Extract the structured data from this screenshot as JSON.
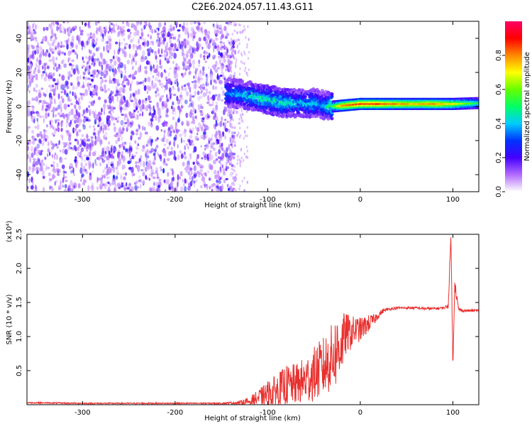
{
  "title": "C2E6.2024.057.11.43.G11",
  "chart_data": [
    {
      "type": "heatmap",
      "xlabel": "Height of straight line (km)",
      "ylabel": "Frequency (Hz)",
      "xlim": [
        -360,
        128
      ],
      "ylim": [
        -50,
        50
      ],
      "xticks": [
        -300,
        -200,
        -100,
        0,
        100
      ],
      "yticks": [
        -40,
        -20,
        0,
        20,
        40
      ],
      "colorbar": {
        "label": "Normalized spectral amplitude",
        "range": [
          0,
          1
        ],
        "ticks": [
          "0.0",
          "0.2",
          "0.4",
          "0.6",
          "0.8"
        ],
        "colors": [
          "#ffffff",
          "#b36bff",
          "#4400ff",
          "#0033ff",
          "#00ccff",
          "#00ff66",
          "#66ff00",
          "#ffff00",
          "#ff8800",
          "#ff0000",
          "#ff0066"
        ]
      },
      "ridge": {
        "x": [
          -140,
          -125,
          -110,
          -100,
          -90,
          -80,
          -70,
          -60,
          -50,
          -40,
          -30,
          -20,
          0,
          20,
          40,
          60,
          80,
          100,
          128
        ],
        "frequency": [
          8,
          7,
          5,
          4,
          3,
          2,
          2,
          2,
          2,
          1,
          0,
          0.5,
          1.5,
          1.5,
          1.5,
          1.5,
          1.5,
          1.5,
          2
        ],
        "amplitude": [
          0.35,
          0.4,
          0.45,
          0.45,
          0.45,
          0.45,
          0.4,
          0.4,
          0.4,
          0.35,
          0.55,
          0.8,
          0.85,
          0.85,
          0.8,
          0.75,
          0.8,
          0.7,
          0.5
        ]
      },
      "grid": false
    },
    {
      "type": "line",
      "xlabel": "Height of straight line (km)",
      "ylabel": "SNR (10 * v/v)",
      "y_multiplier": "(x10⁴)",
      "xlim": [
        -360,
        128
      ],
      "ylim": [
        0,
        2.5
      ],
      "xticks": [
        -300,
        -200,
        -100,
        0,
        100
      ],
      "yticks": [
        0.5,
        1.0,
        1.5,
        2.0,
        2.5
      ],
      "ytick_labels": [
        "0.5",
        "1.0",
        "1.5",
        "2.0",
        "2.5"
      ],
      "color": "#e8302e",
      "series": [
        {
          "x": [
            -360,
            -300,
            -200,
            -150,
            -130,
            -120,
            -110,
            -100,
            -90,
            -80,
            -70,
            -60,
            -50,
            -40,
            -30,
            -25,
            -20,
            -15,
            -10,
            -5,
            0,
            5,
            10,
            15,
            20,
            25,
            30,
            40,
            50,
            60,
            70,
            80,
            90,
            95,
            98,
            100,
            101,
            102,
            104,
            106,
            110,
            120,
            128
          ],
          "y": [
            0.03,
            0.02,
            0.02,
            0.02,
            0.03,
            0.05,
            0.1,
            0.15,
            0.2,
            0.28,
            0.3,
            0.35,
            0.45,
            0.55,
            0.7,
            0.8,
            0.9,
            1.05,
            1.05,
            1.1,
            1.1,
            1.15,
            1.2,
            1.25,
            1.32,
            1.38,
            1.4,
            1.42,
            1.42,
            1.42,
            1.41,
            1.41,
            1.42,
            1.45,
            2.5,
            0.5,
            1.2,
            1.8,
            1.6,
            1.4,
            1.38,
            1.38,
            1.38
          ],
          "noise": [
            0.01,
            0.01,
            0.01,
            0.01,
            0.03,
            0.06,
            0.12,
            0.2,
            0.25,
            0.3,
            0.3,
            0.35,
            0.4,
            0.45,
            0.5,
            0.55,
            0.45,
            0.3,
            0.25,
            0.2,
            0.18,
            0.15,
            0.12,
            0.08,
            0.05,
            0.03,
            0.02,
            0.02,
            0.02,
            0.02,
            0.02,
            0.02,
            0.02,
            0.03,
            0.1,
            0.1,
            0.1,
            0.1,
            0.08,
            0.04,
            0.02,
            0.02,
            0.02
          ]
        }
      ],
      "grid": false
    }
  ]
}
